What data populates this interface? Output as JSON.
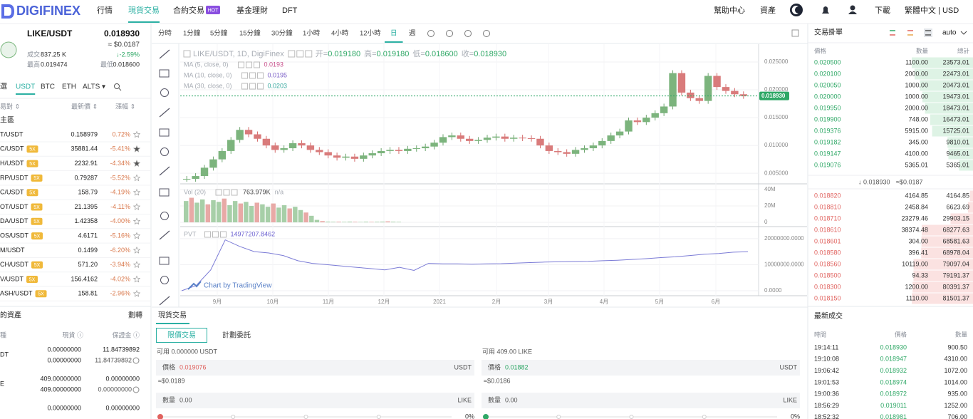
{
  "nav": {
    "logo": "DIGIFINEX",
    "items": [
      "行情",
      "現貨交易",
      "合約交易",
      "基金理財",
      "DFT"
    ],
    "hot": "HOT",
    "right": [
      "幫助中心",
      "資產",
      "下載",
      "繁體中文 | USD"
    ]
  },
  "ticker": {
    "pair": "LIKE/USDT",
    "price": "0.018930",
    "usd": "≈ $0.0187",
    "vol_label": "成交",
    "vol": "837.25 K",
    "change": "↓-2.59%",
    "high_label": "最高",
    "high": "0.019474",
    "low_label": "最低",
    "low": "0.018600"
  },
  "market_tabs": [
    "選",
    "USDT",
    "BTC",
    "ETH",
    "ALTS ▾"
  ],
  "market_header": [
    "易對 ⇕",
    "最新價 ⇕",
    "漲幅 ⇕"
  ],
  "zone": "主區",
  "pairs": [
    {
      "name": "T/USDT",
      "price": "0.158979",
      "change": "0.72%"
    },
    {
      "name": "C/USDT",
      "badge": "5X",
      "price": "35881.44",
      "change": "-5.41%"
    },
    {
      "name": "H/USDT",
      "badge": "5X",
      "price": "2232.91",
      "change": "-4.34%"
    },
    {
      "name": "RP/USDT",
      "badge": "5X",
      "price": "0.79287",
      "change": "-5.52%"
    },
    {
      "name": "C/USDT",
      "badge": "5X",
      "price": "158.79",
      "change": "-4.19%"
    },
    {
      "name": "OT/USDT",
      "badge": "5X",
      "price": "21.1395",
      "change": "-4.11%"
    },
    {
      "name": "DA/USDT",
      "badge": "5X",
      "price": "1.42358",
      "change": "-4.00%"
    },
    {
      "name": "OS/USDT",
      "badge": "5X",
      "price": "4.6171",
      "change": "-5.16%"
    },
    {
      "name": "M/USDT",
      "price": "0.1499",
      "change": "-6.20%"
    },
    {
      "name": "CH/USDT",
      "badge": "5X",
      "price": "571.20",
      "change": "-3.94%"
    },
    {
      "name": "V/USDT",
      "badge": "5X",
      "price": "156.4162",
      "change": "-4.02%"
    },
    {
      "name": "ASH/USDT",
      "badge": "5X",
      "price": "158.81",
      "change": "-2.96%"
    }
  ],
  "assets": {
    "title": "的資產",
    "action": "劃轉",
    "header": [
      "種",
      "現貨 ⓘ",
      "保證金 ⓘ"
    ],
    "rows": [
      {
        "name": "DT",
        "spot": [
          "0.00000000",
          "0.00000000"
        ],
        "margin": [
          "11.84739892",
          "11.84739892"
        ]
      },
      {
        "name": "E",
        "spot": [
          "409.00000000",
          "409.00000000"
        ],
        "margin": [
          "0.00000000",
          "0.00000000"
        ]
      },
      {
        "spot": [
          "0.00000000"
        ],
        "margin": [
          "0.00000000"
        ]
      }
    ]
  },
  "toolbar": [
    "分時",
    "1分鐘",
    "5分鐘",
    "15分鐘",
    "30分鐘",
    "1小時",
    "4小時",
    "12小時",
    "日",
    "週"
  ],
  "chart": {
    "legend": "LIKE/USDT, 1D, DigiFinex",
    "ohlc": [
      {
        "label": "开=",
        "value": "0.019180"
      },
      {
        "label": "高=",
        "value": "0.019180"
      },
      {
        "label": "低=",
        "value": "0.018600"
      },
      {
        "label": "收=",
        "value": "0.018930"
      }
    ],
    "ma": [
      {
        "label": "MA (5, close, 0)",
        "value": "0.0193",
        "color": "#c9508c"
      },
      {
        "label": "MA (10, close, 0)",
        "value": "0.0195",
        "color": "#7b5fc7"
      },
      {
        "label": "MA (30, close, 0)",
        "value": "0.0203",
        "color": "#3aa9a0"
      }
    ],
    "last_price": "0.018930",
    "price": {
      "ylim": [
        0.0031,
        0.0282
      ],
      "yticks": [
        {
          "value": 0.025,
          "label": "0.025000"
        },
        {
          "value": 0.02,
          "label": "0.020000"
        },
        {
          "value": 0.015,
          "label": "0.015000"
        },
        {
          "value": 0.01,
          "label": "0.010000"
        },
        {
          "value": 0.005,
          "label": "0.005000"
        }
      ],
      "closes": [
        0.004,
        0.0045,
        0.006,
        0.0075,
        0.009,
        0.011,
        0.0128,
        0.012,
        0.0112,
        0.01,
        0.0092,
        0.0095,
        0.0104,
        0.01,
        0.0092,
        0.0088,
        0.0082,
        0.0078,
        0.008,
        0.0076,
        0.0082,
        0.0086,
        0.009,
        0.0092,
        0.009,
        0.0094,
        0.0095,
        0.0098,
        0.0105,
        0.0115,
        0.0118,
        0.0112,
        0.0108,
        0.011,
        0.0114,
        0.0116,
        0.0112,
        0.0114,
        0.0113,
        0.0112,
        0.01,
        0.009,
        0.0088,
        0.0085,
        0.0092,
        0.0095,
        0.01,
        0.0108,
        0.0118,
        0.0125,
        0.0145,
        0.0142,
        0.015,
        0.0158,
        0.017,
        0.023,
        0.0195,
        0.0185,
        0.018,
        0.0225,
        0.0205,
        0.0198,
        0.0192,
        0.0189
      ]
    },
    "volume": {
      "label": "Vol (20)",
      "value": "763.979K",
      "extra": "n/a",
      "ylim": [
        -5200000,
        43500000
      ],
      "yticks": [
        {
          "value": 40000000,
          "label": "40M"
        },
        {
          "value": 20000000,
          "label": "20M"
        },
        0
      ],
      "values": [
        26000000,
        30000000,
        24000000,
        28000000,
        22000000,
        27000000,
        25000000,
        29000000,
        21000000,
        26000000,
        23000000,
        25000000,
        20000000,
        24000000,
        22000000,
        19000000,
        23000000,
        18000000,
        21000000,
        17000000,
        19000000,
        15000000,
        12000000,
        8000000,
        3000000,
        1500000,
        900000,
        700000,
        800000,
        600000,
        900000,
        700000,
        500000,
        800000,
        600000,
        700000,
        900000,
        1200000,
        800000,
        600000
      ]
    },
    "pvt": {
      "label": "PVT",
      "value": "14977207.8462",
      "ylim": [
        -1900000,
        23500000
      ],
      "yticks": [
        {
          "value": 20000000,
          "label": "20000000.0000"
        },
        {
          "value": 10000000,
          "label": "10000000.0000"
        },
        {
          "value": 0,
          "label": "0.0000"
        }
      ],
      "values": [
        0,
        2000000,
        8000000,
        19500000,
        17000000,
        15000000,
        14500000,
        13500000,
        11500000,
        10500000,
        10000000,
        9500000,
        9000000,
        8500000,
        8000000,
        9000000,
        7800000,
        10500000,
        10300000,
        10300000,
        10200000,
        10300000,
        10400000,
        10600000,
        10800000,
        11000000,
        11100000,
        11200000,
        11300000,
        11500000,
        11700000,
        12000000,
        12300000,
        12700000,
        13000000,
        13500000,
        14000000,
        14300000,
        14800000,
        14977207.8462
      ]
    },
    "x_labels": [
      "9月",
      "10月",
      "11月",
      "12月",
      "2021",
      "2月",
      "3月",
      "4月",
      "5月",
      "6月"
    ],
    "watermark": "Chart by TradingView"
  },
  "trade": {
    "tab": "現貨交易",
    "modes": [
      "限價交易",
      "計劃委託"
    ],
    "buy": {
      "avail": "可用 0.000000 USDT",
      "price_label": "價格",
      "price": "0.019076",
      "unit": "USDT",
      "approx": "≈$0.0189",
      "qty_label": "數量",
      "qty": "0.00",
      "qty_unit": "LIKE",
      "pct": "0%"
    },
    "sell": {
      "avail": "可用 409.00 LIKE",
      "price_label": "價格",
      "price": "0.01882",
      "unit": "USDT",
      "approx": "≈$0.0186",
      "qty_label": "數量",
      "qty": "0.00",
      "qty_unit": "LIKE",
      "pct": "0%"
    }
  },
  "orderbook": {
    "title": "交易掛單",
    "precision": "auto",
    "header": [
      "價格",
      "數量",
      "總計"
    ],
    "asks": [
      [
        "0.020500",
        "1100.00",
        "23573.01"
      ],
      [
        "0.020100",
        "2000.00",
        "22473.01"
      ],
      [
        "0.020050",
        "1000.00",
        "20473.01"
      ],
      [
        "0.020000",
        "1000.00",
        "19473.01"
      ],
      [
        "0.019950",
        "2000.00",
        "18473.01"
      ],
      [
        "0.019900",
        "748.00",
        "16473.01"
      ],
      [
        "0.019376",
        "5915.00",
        "15725.01"
      ],
      [
        "0.019182",
        "345.00",
        "9810.01"
      ],
      [
        "0.019147",
        "4100.00",
        "9465.01"
      ],
      [
        "0.019076",
        "5365.01",
        "5365.01"
      ]
    ],
    "mid": {
      "price": "↓ 0.018930",
      "usd": "≈$0.0187"
    },
    "bids": [
      [
        "0.018820",
        "4164.85",
        "4164.85"
      ],
      [
        "0.018810",
        "2458.84",
        "6623.69"
      ],
      [
        "0.018710",
        "23279.46",
        "29903.15"
      ],
      [
        "0.018610",
        "38374.48",
        "68277.63"
      ],
      [
        "0.018601",
        "304.00",
        "68581.63"
      ],
      [
        "0.018580",
        "396.41",
        "68978.04"
      ],
      [
        "0.018560",
        "10119.00",
        "79097.04"
      ],
      [
        "0.018500",
        "94.33",
        "79191.37"
      ],
      [
        "0.018300",
        "1200.00",
        "80391.37"
      ],
      [
        "0.018150",
        "1110.00",
        "81501.37"
      ]
    ]
  },
  "trades": {
    "title": "最新成交",
    "header": [
      "時間",
      "價格",
      "數量"
    ],
    "rows": [
      [
        "19:14:11",
        "0.018930",
        "900.50"
      ],
      [
        "19:10:08",
        "0.018947",
        "4310.00"
      ],
      [
        "19:06:42",
        "0.018932",
        "1072.00"
      ],
      [
        "19:01:53",
        "0.018974",
        "1014.00"
      ],
      [
        "19:00:36",
        "0.018972",
        "935.00"
      ],
      [
        "18:56:29",
        "0.019011",
        "1252.00"
      ],
      [
        "18:52:32",
        "0.018981",
        "706.00"
      ]
    ]
  }
}
